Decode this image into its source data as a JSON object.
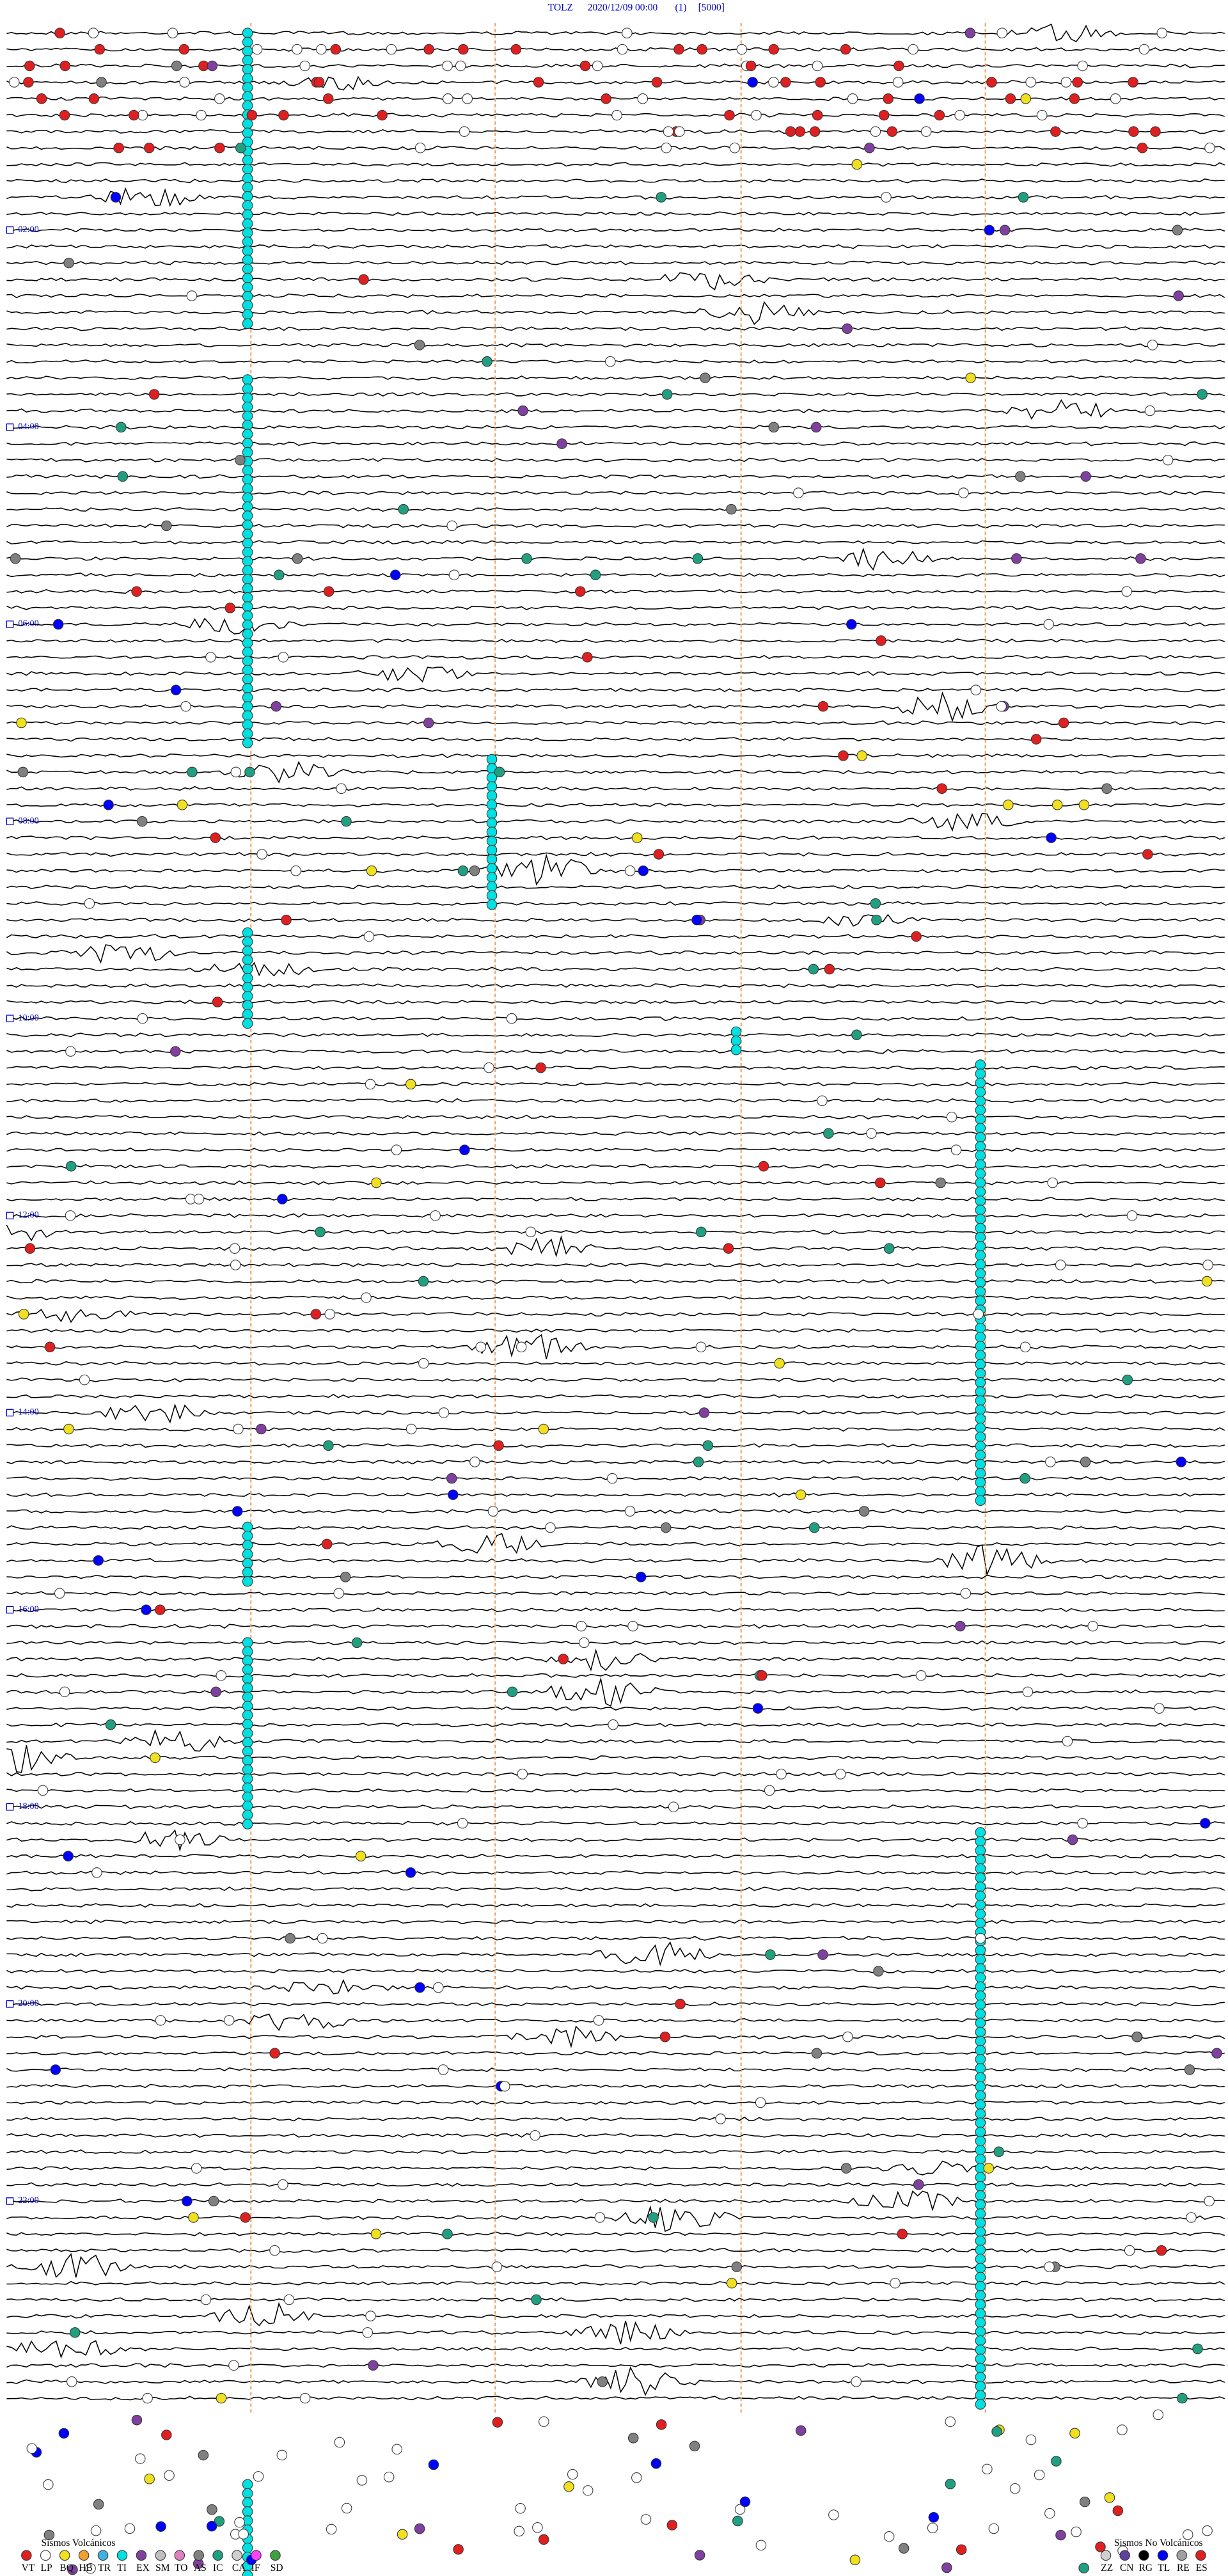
{
  "header": {
    "station": "TOLZ",
    "datetime": "2020/12/09 00:00",
    "channel": "(1)",
    "scale": "[5000]"
  },
  "hour_labels": [
    "02:00",
    "04:00",
    "06:00",
    "08:00",
    "10:00",
    "12:00",
    "14:00",
    "16:00",
    "18:00",
    "20:00",
    "22:00"
  ],
  "legend": {
    "volcanic": {
      "title": "Sismos Volcánicos",
      "items": [
        {
          "label": "VT",
          "color": "#e02020"
        },
        {
          "label": "LP",
          "color": "#ffffff"
        },
        {
          "label": "BQ",
          "color": "#f0e020"
        },
        {
          "label": "HB",
          "color": "#f0a030"
        },
        {
          "label": "TR",
          "color": "#40b0e0"
        },
        {
          "label": "TI",
          "color": "#00e0e0"
        },
        {
          "label": "EX",
          "color": "#8040a0"
        },
        {
          "label": "SM",
          "color": "#c0c0c0"
        },
        {
          "label": "TO",
          "color": "#e080c0"
        },
        {
          "label": "AS",
          "color": "#808080"
        },
        {
          "label": "IC",
          "color": "#20a080"
        },
        {
          "label": "CA",
          "color": "#d0d0d0"
        },
        {
          "label": "IF",
          "color": "#ff40ff"
        },
        {
          "label": "SD",
          "color": "#40a040"
        }
      ]
    },
    "non_volcanic": {
      "title": "Sismos No Volcánicos",
      "items": [
        {
          "label": "ZZ",
          "color": "#d0d0d0"
        },
        {
          "label": "CN",
          "color": "#6040a0"
        },
        {
          "label": "RG",
          "color": "#000000"
        },
        {
          "label": "TL",
          "color": "#0000ff"
        },
        {
          "label": "RE",
          "color": "#a0a0a0"
        },
        {
          "label": "ES",
          "color": "#e02020"
        }
      ]
    }
  }
}
